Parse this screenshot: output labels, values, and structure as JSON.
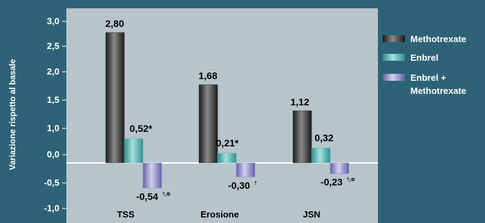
{
  "chart_data": {
    "type": "bar",
    "ylabel": "Variazione rispetto al basale",
    "categories": [
      "TSS",
      "Erosione",
      "JSN"
    ],
    "ylim": [
      -1.0,
      3.0
    ],
    "yticks": [
      "3,0",
      "2,5",
      "2,0",
      "1,5",
      "1,0",
      "0,0",
      "-0,5",
      "-1,0"
    ],
    "ytick_values": [
      3.0,
      2.5,
      2.0,
      1.5,
      1.0,
      0.0,
      -0.5,
      -1.0
    ],
    "series": [
      {
        "name": "Methotrexate",
        "color": "#4a4a4a",
        "values": [
          2.8,
          1.68,
          1.12
        ],
        "labels": [
          "2,80",
          "1,68",
          "1,12"
        ],
        "suffix": [
          "",
          "",
          ""
        ]
      },
      {
        "name": "Enbrel",
        "color": "#5fb8b8",
        "values": [
          0.52,
          0.21,
          0.32
        ],
        "labels": [
          "0,52*",
          "0,21*",
          "0,32"
        ],
        "suffix": [
          "",
          "",
          ""
        ]
      },
      {
        "name": "Enbrel + Methotrexate",
        "legend_lines": [
          "Enbrel +",
          "Methotrexate"
        ],
        "color": "#8f8cc6",
        "values": [
          -0.54,
          -0.3,
          -0.23
        ],
        "labels": [
          "-0,54",
          "-0,30",
          "-0,23"
        ],
        "suffix": [
          "†,Φ",
          "†",
          "†,Φ"
        ]
      }
    ],
    "plot_background": "#b7c4c9",
    "page_background": "#2e6377",
    "legend_position": "right",
    "grid": false
  }
}
